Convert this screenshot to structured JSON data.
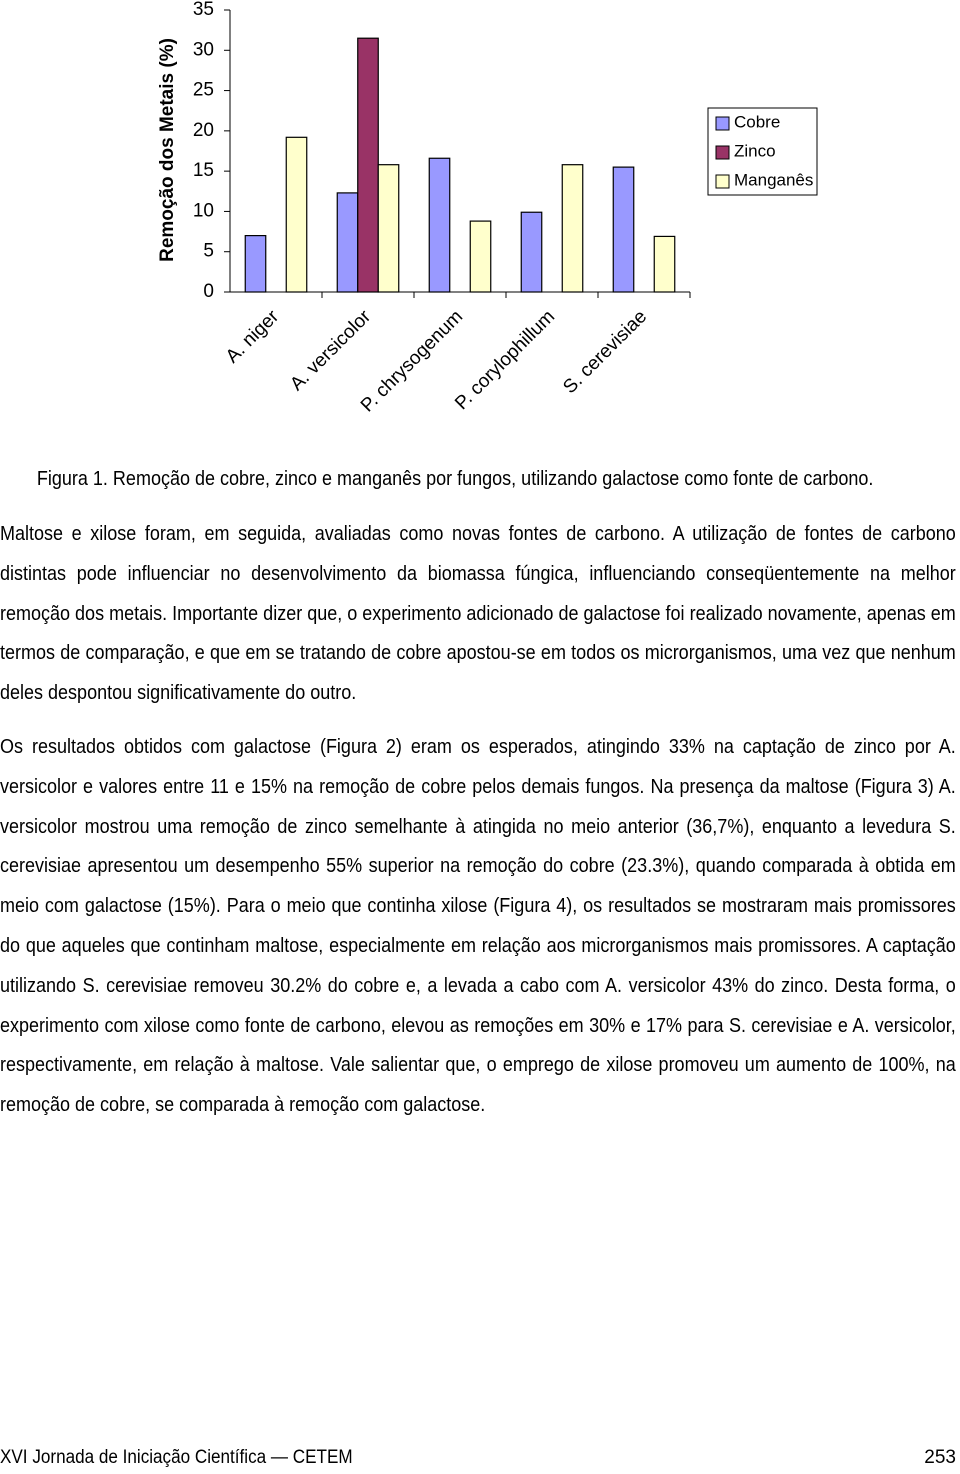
{
  "chart_data": {
    "type": "bar",
    "y_label": "Remoção dos Metais (%)",
    "categories": [
      "A. niger",
      "A. versicolor",
      "P. chrysogenum",
      "P. corylophillum",
      "S. cerevisiae"
    ],
    "series": [
      {
        "name": "Cobre",
        "color": "#9999ff",
        "values": [
          7,
          12.3,
          16.6,
          9.9,
          15.5
        ]
      },
      {
        "name": "Zinco",
        "color": "#993366",
        "values": [
          null,
          31.5,
          null,
          null,
          null
        ]
      },
      {
        "name": "Manganês",
        "color": "#ffffcc",
        "values": [
          19.2,
          15.8,
          8.8,
          15.8,
          6.9
        ]
      }
    ],
    "ylim": [
      0,
      35
    ],
    "yticks": [
      0,
      5,
      10,
      15,
      20,
      25,
      30,
      35
    ],
    "grid": false,
    "legend": "right"
  },
  "caption": "Figura 1. Remoção de cobre, zinco e manganês por fungos, utilizando galactose como fonte de carbono.",
  "paragraphs": [
    "Maltose e xilose foram, em seguida, avaliadas como novas fontes de carbono. A utilização de fontes de carbono distintas pode influenciar no desenvolvimento da biomassa fúngica, influenciando conseqüentemente na melhor remoção dos metais. Importante dizer que, o experimento adicionado de galactose foi realizado novamente, apenas em termos de comparação, e que em se tratando de cobre apostou-se em todos os microrganismos, uma vez que nenhum deles despontou significativamente do outro.",
    "Os resultados obtidos com galactose (Figura 2) eram os esperados, atingindo 33% na captação de zinco por A. versicolor e valores entre 11 e 15% na remoção de cobre pelos demais fungos. Na presença da maltose (Figura 3) A. versicolor mostrou uma remoção de zinco semelhante à atingida no meio anterior (36,7%), enquanto a levedura S. cerevisiae apresentou um desempenho 55% superior na remoção do cobre (23.3%), quando comparada à obtida em meio com galactose (15%). Para o meio que continha xilose (Figura 4), os resultados se mostraram mais promissores do que aqueles que continham maltose, especialmente em relação aos microrganismos mais promissores. A captação utilizando S. cerevisiae removeu 30.2% do cobre e, a levada a cabo com A. versicolor 43% do zinco. Desta forma, o experimento com xilose como fonte de carbono, elevou as remoções em 30% e 17% para S. cerevisiae e A. versicolor, respectivamente, em relação à maltose. Vale salientar que, o emprego de xilose promoveu um aumento de 100%, na remoção de cobre, se comparada à remoção com galactose."
  ],
  "footer": {
    "left": "XVI Jornada de Iniciação Científica — CETEM",
    "right": "253"
  }
}
